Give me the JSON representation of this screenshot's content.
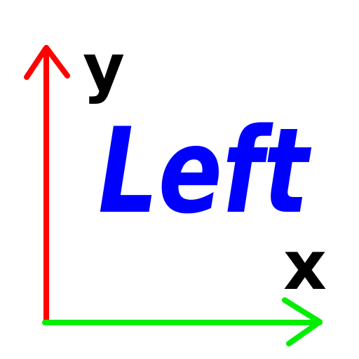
{
  "title_text": "Left",
  "x_axis_label": "x",
  "y_axis_label": "y",
  "colors": {
    "background": "#ffffff",
    "y_axis": "#ff0000",
    "x_axis": "#00ee00",
    "title": "#0000ff",
    "labels": "#000000"
  },
  "icons": {
    "y_axis": "arrow-up-icon",
    "x_axis": "arrow-right-icon"
  }
}
